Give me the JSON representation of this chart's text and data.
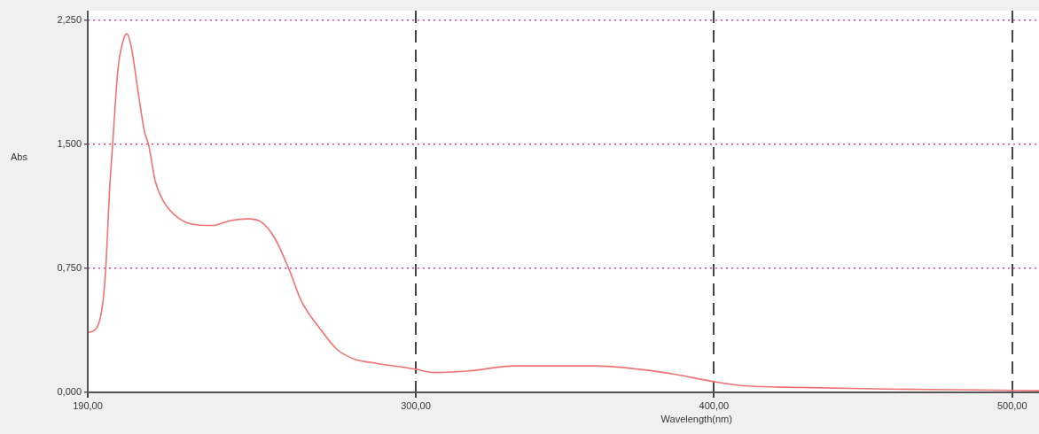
{
  "chart_data": {
    "type": "line",
    "xlabel": "Wavelength(nm)",
    "ylabel": "Abs",
    "xlim": [
      190,
      509
    ],
    "ylim": [
      0,
      2.31
    ],
    "xticks": [
      {
        "value": 190,
        "label": "190,00"
      },
      {
        "value": 300,
        "label": "300,00"
      },
      {
        "value": 400,
        "label": "400,00"
      },
      {
        "value": 500,
        "label": "500,00"
      }
    ],
    "yticks": [
      {
        "value": 0,
        "label": "0,000"
      },
      {
        "value": 0.75,
        "label": "0,750"
      },
      {
        "value": 1.5,
        "label": "1,500"
      },
      {
        "value": 2.25,
        "label": "2,250"
      }
    ],
    "grid": true,
    "legend": false,
    "marker": "none",
    "line_style": "solid",
    "series": [
      {
        "color": "#f07272",
        "x": [
          190,
          193.3,
          195.1,
          196,
          197.4,
          198.3,
          200.1,
          201.6,
          203.1,
          204.6,
          206.7,
          209,
          210.5,
          212.6,
          215.6,
          220,
          224.5,
          232,
          237.9,
          243.9,
          248.3,
          252.8,
          257.6,
          261.7,
          267.7,
          273.6,
          279.6,
          285.5,
          300,
          306,
          318,
          333,
          345,
          360,
          374.8,
          386.7,
          400,
          410,
          428,
          458,
          488,
          509
        ],
        "values": [
          0.36,
          0.4,
          0.55,
          0.74,
          1.25,
          1.49,
          1.95,
          2.11,
          2.17,
          2.09,
          1.84,
          1.58,
          1.49,
          1.28,
          1.15,
          1.06,
          1.02,
          1.01,
          1.04,
          1.05,
          1.03,
          0.93,
          0.74,
          0.55,
          0.39,
          0.26,
          0.2,
          0.18,
          0.14,
          0.12,
          0.13,
          0.16,
          0.16,
          0.16,
          0.14,
          0.11,
          0.065,
          0.04,
          0.03,
          0.02,
          0.015,
          0.01
        ]
      }
    ]
  }
}
